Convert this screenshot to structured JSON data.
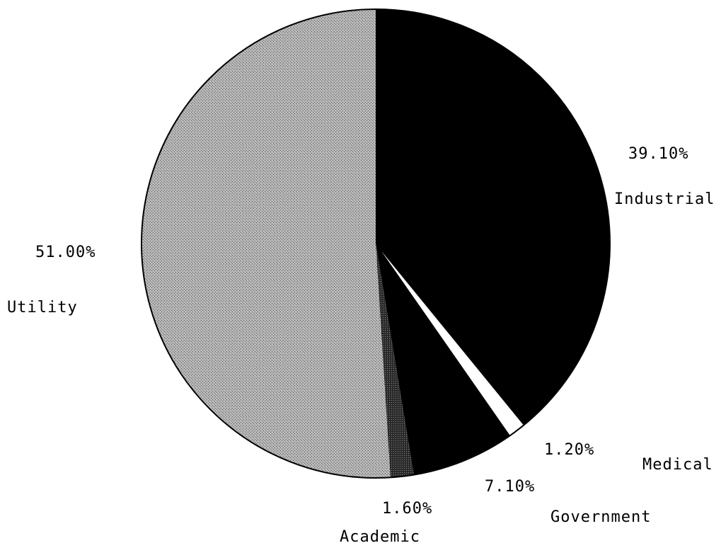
{
  "chart_data": {
    "type": "pie",
    "title": "",
    "start_angle_deg": 0,
    "direction": "clockwise",
    "slices": [
      {
        "label": "Industrial",
        "value": 39.1,
        "value_label": "39.10%",
        "color": "#000000",
        "pattern": "solid"
      },
      {
        "label": "Medical",
        "value": 1.2,
        "value_label": "1.20%",
        "color": "#ffffff",
        "pattern": "solid"
      },
      {
        "label": "Government",
        "value": 7.1,
        "value_label": "7.10%",
        "color": "#000000",
        "pattern": "solid"
      },
      {
        "label": "Academic",
        "value": 1.6,
        "value_label": "1.60%",
        "color": "#3a3a3a",
        "pattern": "dense-dots"
      },
      {
        "label": "Utility",
        "value": 51.0,
        "value_label": "51.00%",
        "color": "#9a9a9a",
        "pattern": "dots"
      }
    ],
    "outline_color": "#000000",
    "legend": "none"
  }
}
